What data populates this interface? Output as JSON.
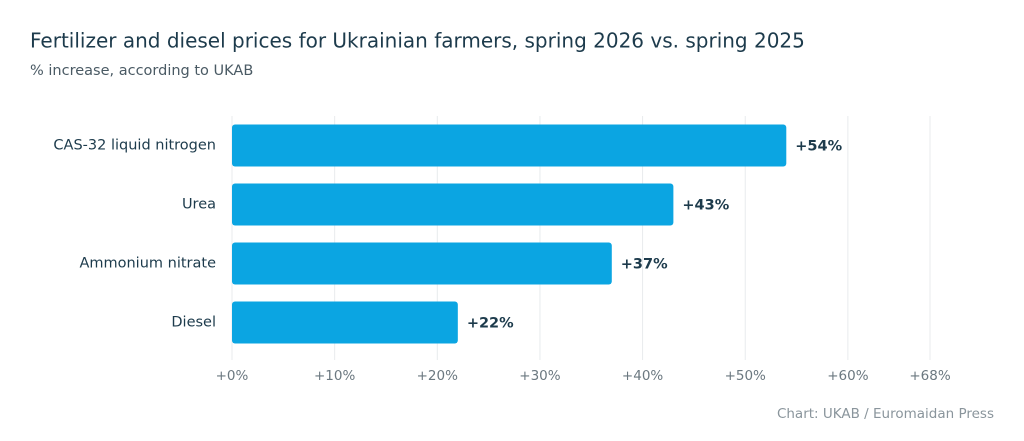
{
  "chart_data": {
    "type": "bar",
    "orientation": "horizontal",
    "title": "Fertilizer and diesel prices for Ukrainian farmers, spring 2026 vs. spring 2025",
    "subtitle": "% increase, according to UKAB",
    "categories": [
      "CAS-32 liquid nitrogen",
      "Urea",
      "Ammonium nitrate",
      "Diesel"
    ],
    "values": [
      54,
      43,
      37,
      22
    ],
    "value_labels": [
      "+54%",
      "+43%",
      "+37%",
      "+22%"
    ],
    "color": "#0ba5e2",
    "xlim": [
      0,
      68
    ],
    "xticks": [
      {
        "value": 0,
        "label": "+0%"
      },
      {
        "value": 10,
        "label": "+10%"
      },
      {
        "value": 20,
        "label": "+20%"
      },
      {
        "value": 30,
        "label": "+30%"
      },
      {
        "value": 40,
        "label": "+40%"
      },
      {
        "value": 50,
        "label": "+50%"
      },
      {
        "value": 60,
        "label": "+60%"
      },
      {
        "value": 68,
        "label": "+68%"
      }
    ],
    "grid": true,
    "source": "Chart: UKAB / Euromaidan Press"
  }
}
